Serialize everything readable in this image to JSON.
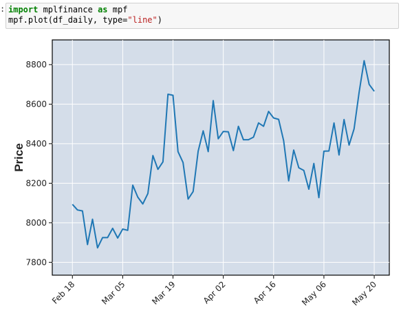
{
  "cell": {
    "prompt": ":",
    "line1": [
      {
        "t": "import",
        "k": "kw"
      },
      {
        "t": " mplfinance ",
        "k": ""
      },
      {
        "t": "as",
        "k": "kw"
      },
      {
        "t": " mpf",
        "k": ""
      }
    ],
    "line2": [
      {
        "t": "mpf.plot(df_daily, type=",
        "k": ""
      },
      {
        "t": "\"line\"",
        "k": "str"
      },
      {
        "t": ")",
        "k": ""
      }
    ]
  },
  "chart_data": {
    "type": "line",
    "title": "",
    "xlabel": "",
    "ylabel": "Price",
    "ylim": [
      7735,
      8925
    ],
    "yticks": [
      7800,
      8000,
      8200,
      8400,
      8600,
      8800
    ],
    "xlim": [
      -4,
      63
    ],
    "xticks": [
      {
        "label": "Feb 18",
        "index": 0
      },
      {
        "label": "Mar 05",
        "index": 10
      },
      {
        "label": "Mar 19",
        "index": 20
      },
      {
        "label": "Apr 02",
        "index": 30
      },
      {
        "label": "Apr 16",
        "index": 40
      },
      {
        "label": "May 06",
        "index": 50
      },
      {
        "label": "May 20",
        "index": 60
      }
    ],
    "grid": true,
    "line_color": "#1f77b4",
    "background_color": "#d4dde9",
    "values": [
      8093,
      8065,
      8060,
      7890,
      8018,
      7873,
      7925,
      7925,
      7972,
      7923,
      7968,
      7962,
      8190,
      8130,
      8095,
      8148,
      8340,
      8270,
      8308,
      8650,
      8645,
      8360,
      8305,
      8120,
      8158,
      8362,
      8465,
      8360,
      8618,
      8425,
      8462,
      8460,
      8365,
      8488,
      8420,
      8420,
      8433,
      8505,
      8488,
      8563,
      8530,
      8523,
      8415,
      8212,
      8368,
      8278,
      8265,
      8170,
      8300,
      8127,
      8362,
      8363,
      8505,
      8343,
      8522,
      8393,
      8475,
      8660,
      8820,
      8700,
      8665
    ]
  }
}
